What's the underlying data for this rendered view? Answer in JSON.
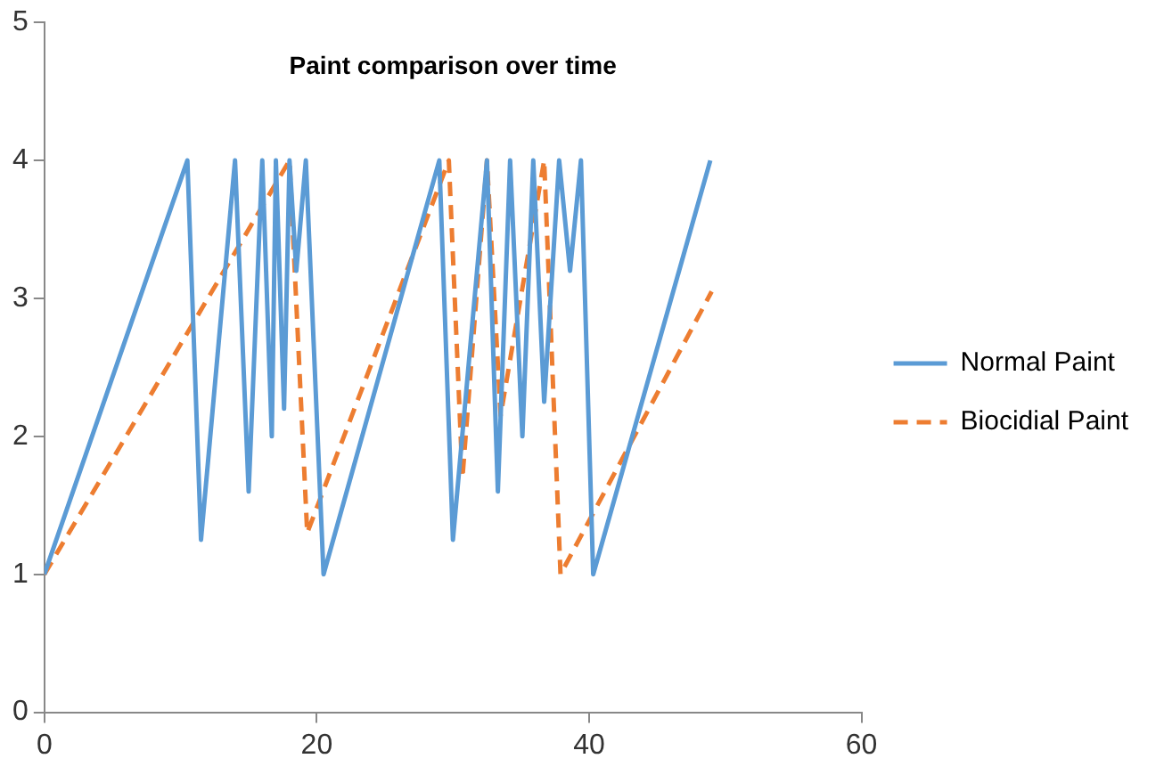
{
  "chart_data": {
    "type": "line",
    "title": "Paint comparison over time",
    "xlim": [
      0,
      60
    ],
    "xticks": [
      0,
      20,
      40,
      60
    ],
    "ylim": [
      0,
      5
    ],
    "yticks": [
      0,
      1,
      2,
      3,
      4,
      5
    ],
    "grid": false,
    "legend": "right",
    "marker": "none",
    "series": [
      {
        "name": "Normal Paint",
        "color": "#5b9bd5",
        "line_style": "solid",
        "x": [
          0,
          10.5,
          11.5,
          14,
          15,
          16,
          16.7,
          17,
          17.6,
          18,
          18.5,
          19.2,
          20.5,
          29,
          30,
          32.5,
          33.3,
          34.2,
          35.1,
          35.9,
          36.7,
          37.8,
          38.6,
          39.4,
          40.3,
          48.9
        ],
        "values": [
          1,
          4,
          1.25,
          4,
          1.6,
          4,
          2,
          4,
          2.2,
          4,
          3.2,
          4,
          1,
          4,
          1.25,
          4,
          1.6,
          4,
          2,
          4,
          2.25,
          4,
          3.2,
          4,
          1,
          4
        ]
      },
      {
        "name": "Biocidial Paint",
        "color": "#ed7d31",
        "line_style": "dashed",
        "x": [
          0,
          18,
          19.3,
          29.7,
          30.7,
          32.5,
          33.5,
          36.7,
          37.9,
          49
        ],
        "values": [
          1,
          4,
          1.3,
          4,
          1.7,
          4,
          2.15,
          4,
          1,
          3.05
        ]
      }
    ]
  }
}
